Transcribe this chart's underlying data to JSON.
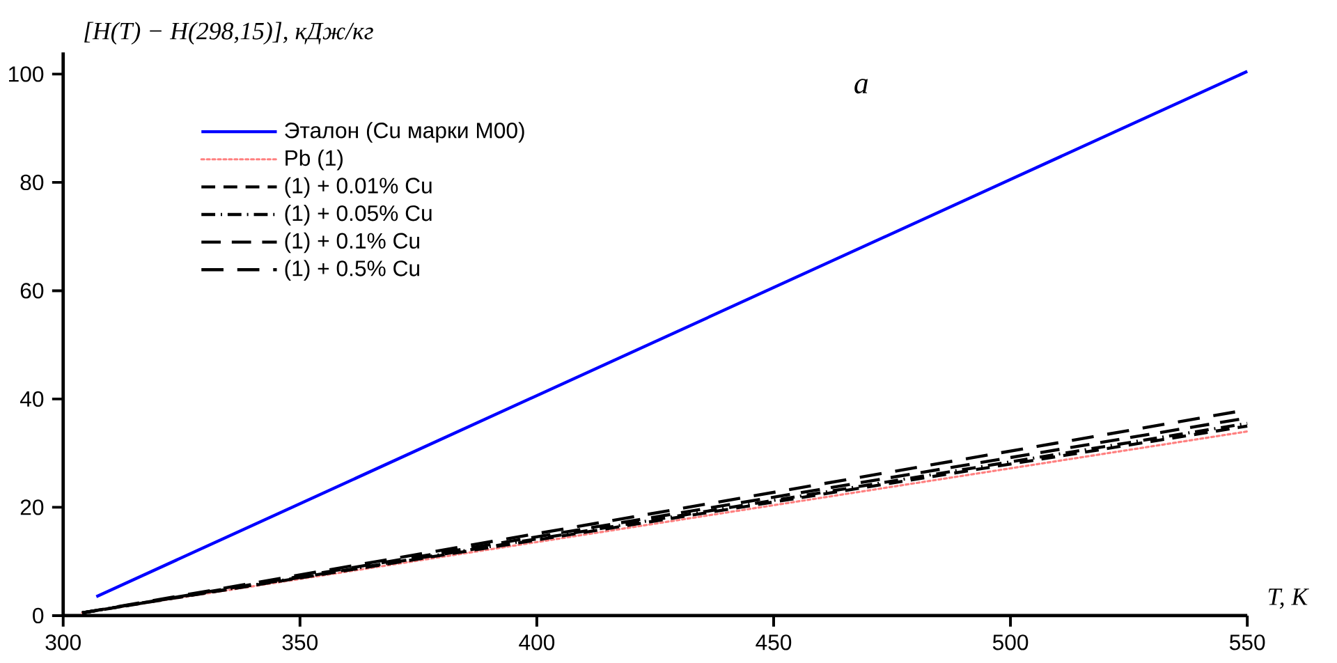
{
  "chart_data": {
    "type": "line",
    "xlabel": "T, K",
    "ylabel": "[H(T) − H(298,15)], кДж/кг",
    "xlim": [
      300,
      550
    ],
    "ylim": [
      0,
      104
    ],
    "xticks": [
      300,
      350,
      400,
      450,
      500,
      550
    ],
    "yticks": [
      0,
      20,
      40,
      60,
      80,
      100
    ],
    "legend": "top left",
    "grid": false,
    "annotations": [
      "a"
    ],
    "series": [
      {
        "name": "Эталон (Cu марки M00)",
        "color": "#0000ff",
        "line_style": "solid",
        "x": [
          307,
          550
        ],
        "values": [
          3.5,
          100.5
        ]
      },
      {
        "name": "Pb (1)",
        "color": "#ff8080",
        "line_style": "dotted",
        "x": [
          304,
          550
        ],
        "values": [
          0.5,
          34.0
        ]
      },
      {
        "name": "(1) + 0.01% Cu",
        "color": "#000000",
        "line_style": "dashed",
        "x": [
          304,
          550
        ],
        "values": [
          0.5,
          35.0
        ]
      },
      {
        "name": "(1) + 0.05% Cu",
        "color": "#000000",
        "line_style": "dashed",
        "x": [
          304,
          550
        ],
        "values": [
          0.5,
          35.5
        ]
      },
      {
        "name": "(1) + 0.1% Cu",
        "color": "#000000",
        "line_style": "dashed",
        "x": [
          304,
          550
        ],
        "values": [
          0.5,
          36.5
        ]
      },
      {
        "name": "(1) + 0.5% Cu",
        "color": "#000000",
        "line_style": "dashed",
        "x": [
          304,
          550
        ],
        "values": [
          0.5,
          38.0
        ]
      }
    ]
  }
}
